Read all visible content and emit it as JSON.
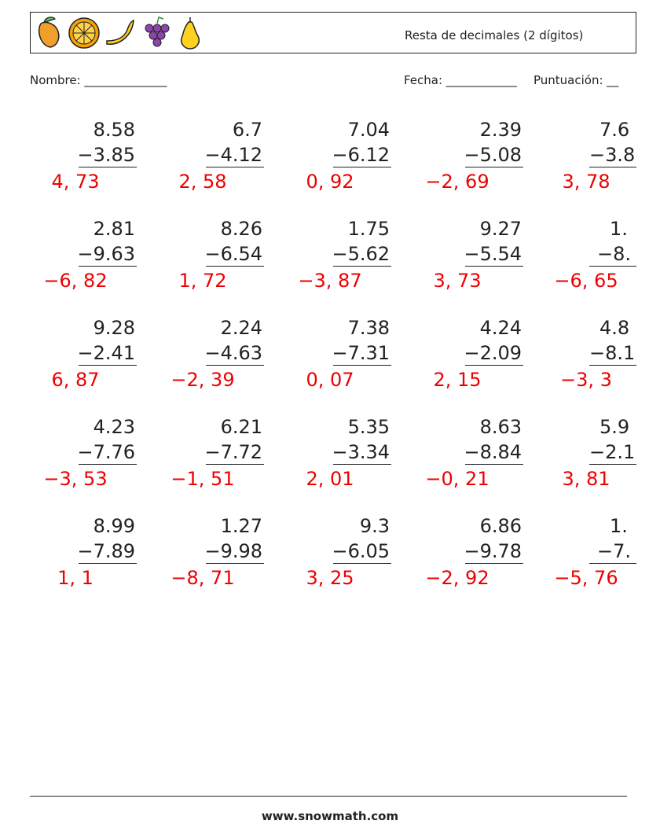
{
  "header": {
    "title": "Resta de decimales (2 dígitos)"
  },
  "fields": {
    "name": "Nombre: ______________",
    "date": "Fecha: ____________",
    "score": "Puntuación: __"
  },
  "problems": [
    [
      [
        "8.58",
        "−3.85",
        "4, 73"
      ],
      [
        "6.7",
        "−4.12",
        "2, 58"
      ],
      [
        "7.04",
        "−6.12",
        "0, 92"
      ],
      [
        "2.39",
        "−5.08",
        "−2, 69"
      ],
      [
        "7.6",
        "−3.8",
        "3, 78"
      ]
    ],
    [
      [
        "2.81",
        "−9.63",
        "−6, 82"
      ],
      [
        "8.26",
        "−6.54",
        "1, 72"
      ],
      [
        "1.75",
        "−5.62",
        "−3, 87"
      ],
      [
        "9.27",
        "−5.54",
        "3, 73"
      ],
      [
        "1.",
        "−8.",
        "−6, 65"
      ]
    ],
    [
      [
        "9.28",
        "−2.41",
        "6, 87"
      ],
      [
        "2.24",
        "−4.63",
        "−2, 39"
      ],
      [
        "7.38",
        "−7.31",
        "0, 07"
      ],
      [
        "4.24",
        "−2.09",
        "2, 15"
      ],
      [
        "4.8",
        "−8.1",
        "−3, 3"
      ]
    ],
    [
      [
        "4.23",
        "−7.76",
        "−3, 53"
      ],
      [
        "6.21",
        "−7.72",
        "−1, 51"
      ],
      [
        "5.35",
        "−3.34",
        "2, 01"
      ],
      [
        "8.63",
        "−8.84",
        "−0, 21"
      ],
      [
        "5.9",
        "−2.1",
        "3, 81"
      ]
    ],
    [
      [
        "8.99",
        "−7.89",
        "1, 1"
      ],
      [
        "1.27",
        "−9.98",
        "−8, 71"
      ],
      [
        "9.3",
        "−6.05",
        "3, 25"
      ],
      [
        "6.86",
        "−9.78",
        "−2, 92"
      ],
      [
        "1.",
        "−7.",
        "−5, 76"
      ]
    ]
  ],
  "footer": {
    "site": "www.snowmath.com"
  }
}
